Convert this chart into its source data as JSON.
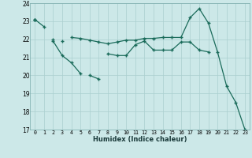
{
  "xlabel": "Humidex (Indice chaleur)",
  "x": [
    0,
    1,
    2,
    3,
    4,
    5,
    6,
    7,
    8,
    9,
    10,
    11,
    12,
    13,
    14,
    15,
    16,
    17,
    18,
    19,
    20,
    21,
    22,
    23
  ],
  "line1": [
    23.1,
    22.7,
    null,
    21.9,
    null,
    null,
    20.0,
    19.8,
    null,
    null,
    null,
    null,
    null,
    null,
    null,
    null,
    null,
    null,
    null,
    null,
    null,
    null,
    null,
    null
  ],
  "line2": [
    23.1,
    null,
    21.9,
    21.1,
    20.7,
    20.1,
    null,
    null,
    21.2,
    21.1,
    21.1,
    21.7,
    21.9,
    21.4,
    21.4,
    21.4,
    21.85,
    21.85,
    21.4,
    21.3,
    null,
    null,
    null,
    null
  ],
  "line3": [
    23.1,
    null,
    22.0,
    null,
    22.1,
    22.05,
    21.95,
    21.85,
    21.75,
    21.85,
    21.95,
    21.95,
    22.05,
    22.05,
    22.1,
    22.1,
    22.1,
    23.2,
    23.7,
    22.9,
    21.3,
    19.4,
    18.5,
    17.0
  ],
  "ylim": [
    17,
    24
  ],
  "yticks": [
    17,
    18,
    19,
    20,
    21,
    22,
    23,
    24
  ],
  "xticks": [
    0,
    1,
    2,
    3,
    4,
    5,
    6,
    7,
    8,
    9,
    10,
    11,
    12,
    13,
    14,
    15,
    16,
    17,
    18,
    19,
    20,
    21,
    22,
    23
  ],
  "bg_color": "#cce8e8",
  "line_color": "#1a6b5a",
  "grid_color": "#aacfcf"
}
